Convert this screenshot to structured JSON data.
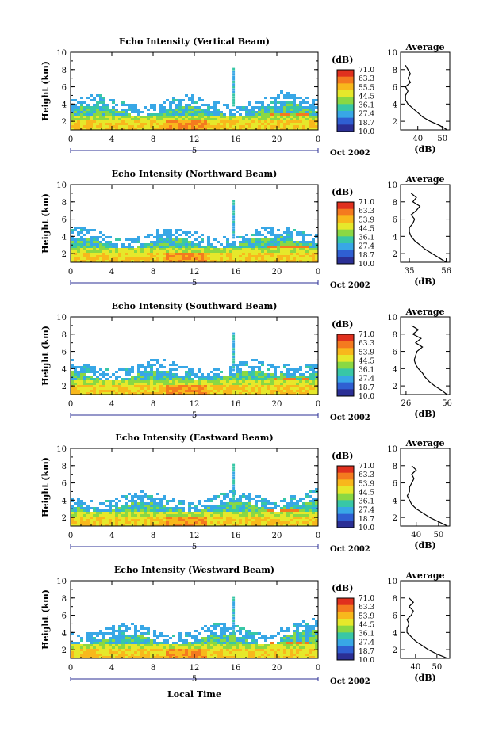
{
  "chart_data": [
    {
      "type": "heatmap",
      "title": "Echo Intensity (Vertical Beam)",
      "ylabel": "Height (km)",
      "xticks": [
        "0",
        "4",
        "8",
        "12",
        "16",
        "20",
        "0"
      ],
      "yticks": [
        "2",
        "4",
        "6",
        "8",
        "10"
      ],
      "xlim": [
        0,
        24
      ],
      "ylim": [
        1,
        10
      ],
      "date_marker": "5",
      "date_label": "Oct 2002",
      "colorbar_unit": "(dB)",
      "colorbar_ticks": [
        "71.0",
        "63.3",
        "55.5",
        "44.5",
        "36.1",
        "27.4",
        "18.7",
        "10.0"
      ],
      "average": {
        "title": "Average",
        "xlabel": "(dB)",
        "xticks": [
          "40",
          "50"
        ],
        "xlim": [
          33,
          53
        ],
        "yticks": [
          "2",
          "4",
          "6",
          "8",
          "10"
        ],
        "heights": [
          1,
          1.5,
          2,
          2.5,
          3,
          3.5,
          4,
          4.5,
          5,
          5.5,
          6,
          6.5,
          7,
          7.5,
          8,
          8.5
        ],
        "values": [
          52,
          49,
          45,
          42,
          40,
          38,
          36,
          35,
          35,
          36,
          35,
          37,
          36,
          37,
          36,
          35
        ]
      }
    },
    {
      "type": "heatmap",
      "title": "Echo Intensity (Northward Beam)",
      "ylabel": "Height (km)",
      "xticks": [
        "0",
        "4",
        "8",
        "12",
        "16",
        "20",
        "0"
      ],
      "yticks": [
        "2",
        "4",
        "6",
        "8",
        "10"
      ],
      "xlim": [
        0,
        24
      ],
      "ylim": [
        1,
        10
      ],
      "date_marker": "5",
      "date_label": "Oct 2002",
      "colorbar_unit": "(dB)",
      "colorbar_ticks": [
        "71.0",
        "63.3",
        "53.9",
        "44.5",
        "36.1",
        "27.4",
        "18.7",
        "10.0"
      ],
      "average": {
        "title": "Average",
        "xlabel": "(dB)",
        "xticks": [
          "35",
          "56"
        ],
        "xlim": [
          30,
          58
        ],
        "yticks": [
          "2",
          "4",
          "6",
          "8",
          "10"
        ],
        "heights": [
          1,
          1.5,
          2,
          2.5,
          3,
          3.5,
          4,
          4.5,
          5,
          5.5,
          6,
          6.5,
          7,
          7.5,
          8,
          8.5,
          9
        ],
        "values": [
          56,
          52,
          48,
          44,
          41,
          38,
          36,
          35,
          35,
          37,
          38,
          36,
          39,
          41,
          37,
          39,
          36
        ]
      }
    },
    {
      "type": "heatmap",
      "title": "Echo Intensity (Southward Beam)",
      "ylabel": "Height (km)",
      "xticks": [
        "0",
        "4",
        "8",
        "12",
        "16",
        "20",
        "0"
      ],
      "yticks": [
        "2",
        "4",
        "6",
        "8",
        "10"
      ],
      "xlim": [
        0,
        24
      ],
      "ylim": [
        1,
        10
      ],
      "date_marker": "5",
      "date_label": "Oct 2002",
      "colorbar_unit": "(dB)",
      "colorbar_ticks": [
        "71.0",
        "63.3",
        "53.9",
        "44.5",
        "36.1",
        "27.4",
        "18.7",
        "10.0"
      ],
      "average": {
        "title": "Average",
        "xlabel": "(dB)",
        "xticks": [
          "26",
          "56"
        ],
        "xlim": [
          22,
          58
        ],
        "yticks": [
          "2",
          "4",
          "6",
          "8",
          "10"
        ],
        "heights": [
          1,
          1.5,
          2,
          2.5,
          3,
          3.5,
          4,
          4.5,
          5,
          5.5,
          6,
          6.5,
          7,
          7.5,
          8,
          8.5,
          9
        ],
        "values": [
          56,
          52,
          47,
          43,
          40,
          38,
          35,
          33,
          32,
          33,
          34,
          38,
          33,
          37,
          31,
          35,
          30
        ]
      }
    },
    {
      "type": "heatmap",
      "title": "Echo Intensity (Eastward Beam)",
      "ylabel": "Height (km)",
      "xticks": [
        "0",
        "4",
        "8",
        "12",
        "16",
        "20",
        "0"
      ],
      "yticks": [
        "2",
        "4",
        "6",
        "8",
        "10"
      ],
      "xlim": [
        0,
        24
      ],
      "ylim": [
        1,
        10
      ],
      "date_marker": "5",
      "date_label": "Oct 2002",
      "colorbar_unit": "(dB)",
      "colorbar_ticks": [
        "71.0",
        "63.3",
        "53.9",
        "44.5",
        "36.1",
        "27.4",
        "18.7",
        "10.0"
      ],
      "average": {
        "title": "Average",
        "xlabel": "(dB)",
        "xticks": [
          "40",
          "50"
        ],
        "xlim": [
          33,
          55
        ],
        "yticks": [
          "2",
          "4",
          "6",
          "8",
          "10"
        ],
        "heights": [
          1,
          1.5,
          2,
          2.5,
          3,
          3.5,
          4,
          4.5,
          5,
          5.5,
          6,
          6.5,
          7,
          7.5,
          8
        ],
        "values": [
          54,
          50,
          46,
          43,
          40,
          38,
          37,
          36,
          37,
          37,
          38,
          39,
          38,
          40,
          38
        ]
      }
    },
    {
      "type": "heatmap",
      "title": "Echo Intensity (Westward Beam)",
      "ylabel": "Height (km)",
      "xticks": [
        "0",
        "4",
        "8",
        "12",
        "16",
        "20",
        "0"
      ],
      "yticks": [
        "2",
        "4",
        "6",
        "8",
        "10"
      ],
      "xlim": [
        0,
        24
      ],
      "ylim": [
        1,
        10
      ],
      "date_marker": "5",
      "date_label": "Oct 2002",
      "colorbar_unit": "(dB)",
      "colorbar_ticks": [
        "71.0",
        "63.3",
        "53.9",
        "44.5",
        "36.1",
        "27.4",
        "18.7",
        "10.0"
      ],
      "average": {
        "title": "Average",
        "xlabel": "(dB)",
        "xticks": [
          "40",
          "50"
        ],
        "xlim": [
          33,
          56
        ],
        "yticks": [
          "2",
          "4",
          "6",
          "8",
          "10"
        ],
        "heights": [
          1,
          1.5,
          2,
          2.5,
          3,
          3.5,
          4,
          4.5,
          5,
          5.5,
          6,
          6.5,
          7,
          7.5,
          8
        ],
        "values": [
          55,
          50,
          46,
          43,
          40,
          38,
          36,
          36,
          37,
          36,
          38,
          39,
          37,
          39,
          37
        ]
      }
    }
  ],
  "shared_xlabel": "Local Time",
  "colorbar_colors": [
    "#e0301e",
    "#f47a1f",
    "#f8b81c",
    "#e6e82b",
    "#8ad843",
    "#38c7a6",
    "#38a7e6",
    "#2f5fd2",
    "#2b2f95"
  ]
}
